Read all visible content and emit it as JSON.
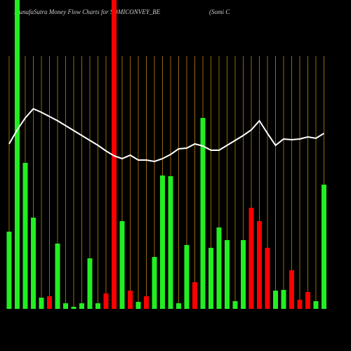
{
  "chart_data": {
    "type": "bar",
    "title": "MunafaSutra  Money Flow Charts for SOMICONVEY_BE",
    "subtitle": "(Somi  C",
    "ylim": [
      0,
      440
    ],
    "grid": true,
    "grid_color": "#b8860b",
    "line_color": "#ffffff",
    "series": [
      {
        "values": [
          110,
          440,
          208,
          130,
          16,
          18,
          93,
          8,
          3,
          8,
          72,
          8,
          22,
          440,
          125,
          26,
          10,
          18,
          74,
          190,
          189,
          8,
          91,
          38,
          272,
          87,
          116,
          98,
          11,
          98,
          144,
          125,
          87,
          26,
          27,
          55,
          13,
          24,
          11,
          177
        ],
        "colors": [
          "#22ee22",
          "#22ee22",
          "#22ee22",
          "#22ee22",
          "#22ee22",
          "#ff0000",
          "#22ee22",
          "#22ee22",
          "#22ee22",
          "#22ee22",
          "#22ee22",
          "#22ee22",
          "#ff0000",
          "#ff0000",
          "#22ee22",
          "#ff0000",
          "#22ee22",
          "#ff0000",
          "#22ee22",
          "#22ee22",
          "#22ee22",
          "#22ee22",
          "#22ee22",
          "#ff0000",
          "#22ee22",
          "#22ee22",
          "#22ee22",
          "#22ee22",
          "#22ee22",
          "#22ee22",
          "#ff0000",
          "#ff0000",
          "#ff0000",
          "#22ee22",
          "#22ee22",
          "#ff0000",
          "#ff0000",
          "#ff0000",
          "#22ee22",
          "#22ee22"
        ]
      },
      {
        "type": "line",
        "values": [
          235,
          255,
          272,
          285,
          280,
          274,
          268,
          261,
          254,
          247,
          240,
          233,
          225,
          218,
          214,
          219,
          212,
          212,
          210,
          214,
          220,
          228,
          229,
          235,
          232,
          226,
          226,
          233,
          240,
          247,
          255,
          268,
          250,
          233,
          242,
          241,
          242,
          245,
          243,
          250
        ]
      }
    ]
  }
}
